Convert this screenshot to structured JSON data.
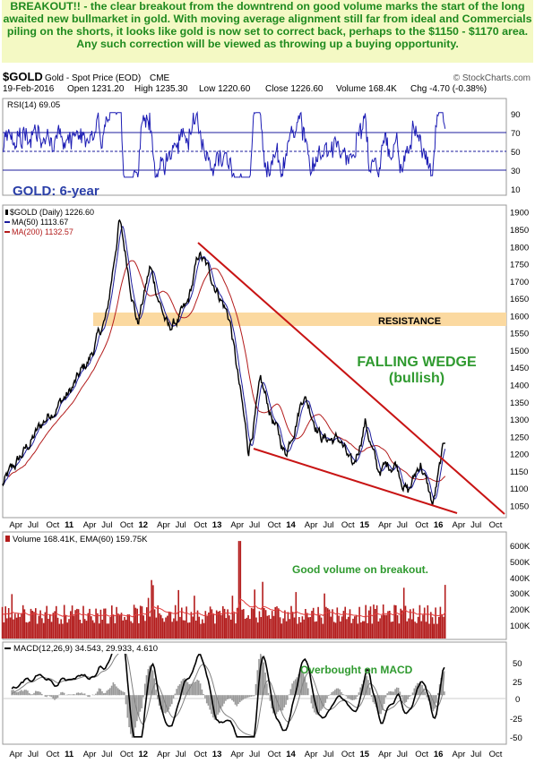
{
  "annotation": "BREAKOUT!! - the clear breakout from the downtrend on good volume marks the start of the long awaited new bullmarket in gold. With moving average alignment still far from ideal and Commercials piling on the shorts, it looks like gold is now set to correct back, perhaps to the $1150 - $1170 area. Any such correction will be viewed as throwing up a buying opportunity.",
  "header": {
    "symbol": "$GOLD",
    "description": "Gold - Spot Price (EOD)",
    "exchange": "CME",
    "copyright": "© StockCharts.com",
    "date": "19-Feb-2016",
    "open": "Open 1231.20",
    "high": "High 1235.30",
    "low": "Low 1220.60",
    "close": "Close 1226.60",
    "volume": "Volume 168.4K",
    "change": "Chg -4.70 (-0.38%)"
  },
  "colors": {
    "rsi_line": "#1c1cb4",
    "price_bars": "#000000",
    "ma50": "#1c1c9c",
    "ma200": "#b31c1c",
    "trendline": "#c81414",
    "resistance_band": "#fbd9a0",
    "annotation_text": "#1f8a1f",
    "volume_bars": "#b31c1c",
    "macd_line": "#000000",
    "signal_line": "#808080",
    "title_blue": "#2b3fa8"
  },
  "rsi_panel": {
    "legend": "RSI(14) 69.05",
    "ticks": [
      "90",
      "70",
      "50",
      "30",
      "10"
    ]
  },
  "price_panel": {
    "title": "GOLD: 6-year",
    "legend_price": "$GOLD (Daily) 1226.60",
    "legend_ma50": "MA(50) 1113.67",
    "legend_ma200": "MA(200) 1132.57",
    "resistance_label": "RESISTANCE",
    "wedge_label_1": "FALLING WEDGE",
    "wedge_label_2": "(bullish)",
    "ticks": [
      "1900",
      "1850",
      "1800",
      "1750",
      "1700",
      "1650",
      "1600",
      "1550",
      "1500",
      "1450",
      "1400",
      "1350",
      "1300",
      "1250",
      "1200",
      "1150",
      "1100",
      "1050"
    ]
  },
  "volume_panel": {
    "legend": "Volume 168.41K, EMA(60) 159.75K",
    "note": "Good volume on breakout.",
    "ticks": [
      "600K",
      "500K",
      "400K",
      "300K",
      "200K",
      "100K"
    ]
  },
  "macd_panel": {
    "legend": "MACD(12,26,9) 34.543, 29.933, 4.610",
    "note": "Overbought on MACD",
    "ticks": [
      "50",
      "25",
      "0",
      "-25",
      "-50"
    ]
  },
  "x_axis": {
    "labels": [
      "Apr",
      "Jul",
      "Oct",
      "11",
      "Apr",
      "Jul",
      "Oct",
      "12",
      "Apr",
      "Jul",
      "Oct",
      "13",
      "Apr",
      "Jul",
      "Oct",
      "14",
      "Apr",
      "Jul",
      "Oct",
      "15",
      "Apr",
      "Jul",
      "Oct",
      "16",
      "Apr",
      "Jul",
      "Oct"
    ]
  },
  "chart_data": {
    "type": "line",
    "symbol": "$GOLD",
    "price_anchors": {
      "x": [
        "2010-02",
        "2010-06",
        "2010-10",
        "2011-01",
        "2011-04",
        "2011-07",
        "2011-09",
        "2011-12",
        "2012-02",
        "2012-05",
        "2012-08",
        "2012-10",
        "2013-01",
        "2013-03",
        "2013-06",
        "2013-08",
        "2013-12",
        "2014-03",
        "2014-06",
        "2014-09",
        "2014-11",
        "2015-01",
        "2015-03",
        "2015-06",
        "2015-08",
        "2015-10",
        "2015-12",
        "2016-02"
      ],
      "values": [
        1110,
        1220,
        1330,
        1380,
        1470,
        1600,
        1880,
        1580,
        1740,
        1560,
        1620,
        1780,
        1680,
        1590,
        1210,
        1400,
        1200,
        1380,
        1250,
        1240,
        1150,
        1300,
        1150,
        1180,
        1090,
        1180,
        1050,
        1240
      ]
    },
    "ma50": 1113.67,
    "ma200": 1132.57,
    "resistance_zone": [
      1530,
      1560
    ],
    "y_range": [
      1020,
      1920
    ],
    "rsi": {
      "last": 69.05,
      "levels": [
        30,
        50,
        70
      ],
      "range": [
        0,
        100
      ]
    },
    "volume": {
      "last": "168.41K",
      "ema60": "159.75K",
      "range": [
        0,
        650000
      ]
    },
    "macd": {
      "macd": 34.543,
      "signal": 29.933,
      "histogram": 4.61,
      "range": [
        -60,
        65
      ]
    }
  }
}
